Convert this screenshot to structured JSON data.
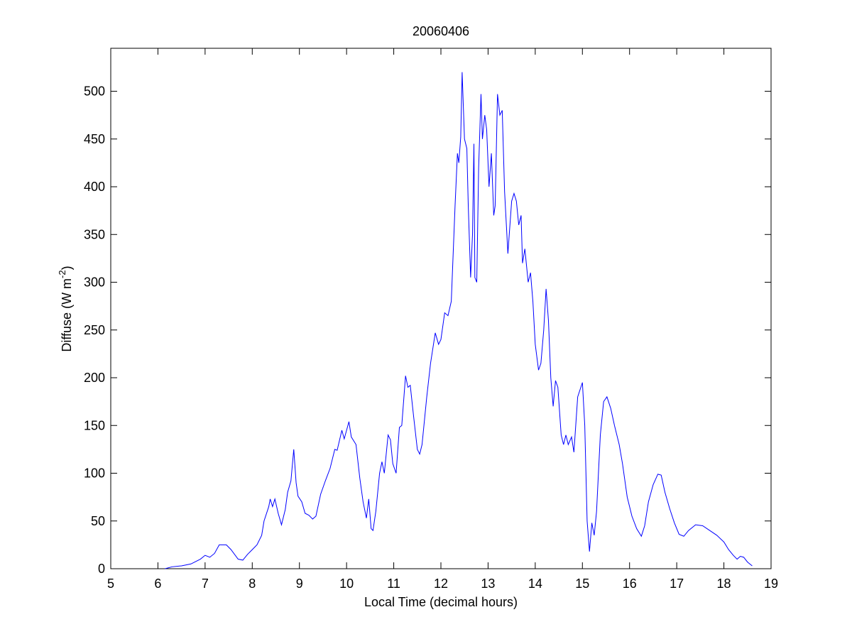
{
  "chart_data": {
    "type": "line",
    "title": "20060406",
    "xlabel": "Local Time (decimal hours)",
    "ylabel": [
      "Diffuse (W m",
      "-2",
      ")"
    ],
    "xlim": [
      5,
      19
    ],
    "ylim": [
      0,
      545
    ],
    "xticks": [
      5,
      6,
      7,
      8,
      9,
      10,
      11,
      12,
      13,
      14,
      15,
      16,
      17,
      18,
      19
    ],
    "yticks": [
      0,
      50,
      100,
      150,
      200,
      250,
      300,
      350,
      400,
      450,
      500
    ],
    "series": [
      {
        "color": "#0000ff",
        "x": [
          6.15,
          6.3,
          6.5,
          6.7,
          6.9,
          7.0,
          7.1,
          7.2,
          7.3,
          7.45,
          7.55,
          7.7,
          7.8,
          7.9,
          8.0,
          8.1,
          8.2,
          8.25,
          8.35,
          8.38,
          8.43,
          8.48,
          8.55,
          8.62,
          8.7,
          8.75,
          8.82,
          8.88,
          8.93,
          8.97,
          9.05,
          9.12,
          9.2,
          9.28,
          9.35,
          9.45,
          9.55,
          9.65,
          9.75,
          9.8,
          9.9,
          9.95,
          10.05,
          10.1,
          10.2,
          10.28,
          10.35,
          10.42,
          10.47,
          10.52,
          10.56,
          10.62,
          10.7,
          10.75,
          10.8,
          10.88,
          10.93,
          10.98,
          11.05,
          11.12,
          11.17,
          11.25,
          11.3,
          11.35,
          11.42,
          11.5,
          11.55,
          11.6,
          11.7,
          11.78,
          11.88,
          11.95,
          12.0,
          12.08,
          12.15,
          12.22,
          12.3,
          12.35,
          12.38,
          12.42,
          12.45,
          12.5,
          12.55,
          12.58,
          12.63,
          12.67,
          12.7,
          12.72,
          12.76,
          12.8,
          12.85,
          12.88,
          12.93,
          12.97,
          13.02,
          13.07,
          13.12,
          13.15,
          13.2,
          13.25,
          13.3,
          13.35,
          13.42,
          13.5,
          13.55,
          13.6,
          13.65,
          13.7,
          13.73,
          13.78,
          13.85,
          13.9,
          13.95,
          14.0,
          14.07,
          14.12,
          14.18,
          14.23,
          14.28,
          14.33,
          14.38,
          14.43,
          14.48,
          14.55,
          14.6,
          14.65,
          14.7,
          14.77,
          14.82,
          14.9,
          15.0,
          15.05,
          15.1,
          15.15,
          15.2,
          15.25,
          15.3,
          15.38,
          15.45,
          15.52,
          15.6,
          15.68,
          15.78,
          15.85,
          15.95,
          16.05,
          16.15,
          16.25,
          16.32,
          16.4,
          16.5,
          16.6,
          16.67,
          16.75,
          16.85,
          16.95,
          17.05,
          17.15,
          17.25,
          17.4,
          17.55,
          17.7,
          17.85,
          18.0,
          18.1,
          18.2,
          18.28,
          18.35,
          18.42,
          18.5,
          18.6
        ],
        "values": [
          0,
          2,
          3,
          5,
          10,
          14,
          12,
          16,
          25,
          25,
          20,
          10,
          9,
          15,
          20,
          25,
          35,
          50,
          65,
          73,
          65,
          73,
          58,
          46,
          62,
          80,
          92,
          125,
          90,
          76,
          70,
          58,
          56,
          52,
          55,
          78,
          92,
          105,
          125,
          124,
          145,
          136,
          154,
          138,
          130,
          95,
          70,
          53,
          73,
          42,
          40,
          60,
          100,
          112,
          100,
          140,
          135,
          110,
          100,
          148,
          150,
          202,
          190,
          192,
          160,
          125,
          120,
          130,
          180,
          215,
          247,
          235,
          240,
          268,
          265,
          280,
          380,
          435,
          425,
          452,
          520,
          450,
          440,
          380,
          305,
          350,
          445,
          305,
          300,
          420,
          497,
          450,
          475,
          460,
          400,
          435,
          370,
          380,
          497,
          475,
          480,
          395,
          330,
          385,
          393,
          385,
          360,
          370,
          320,
          335,
          300,
          310,
          280,
          235,
          208,
          215,
          250,
          293,
          260,
          200,
          170,
          197,
          190,
          140,
          130,
          140,
          130,
          138,
          122,
          180,
          195,
          150,
          50,
          18,
          48,
          35,
          60,
          140,
          175,
          180,
          168,
          150,
          130,
          110,
          75,
          55,
          42,
          34,
          45,
          70,
          88,
          99,
          98,
          80,
          63,
          48,
          36,
          34,
          40,
          46,
          45,
          40,
          35,
          28,
          20,
          14,
          10,
          13,
          12,
          7,
          3
        ]
      }
    ]
  }
}
